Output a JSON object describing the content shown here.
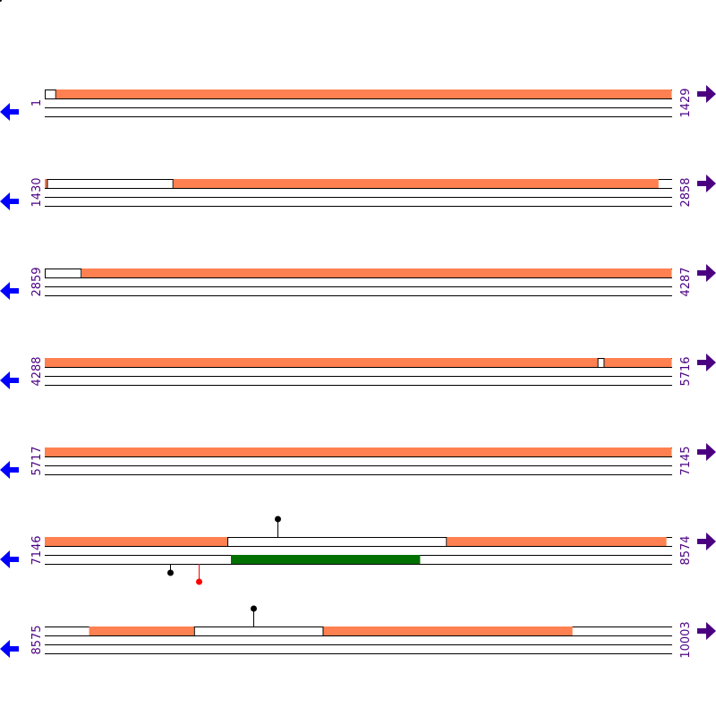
{
  "colors": {
    "line": "#000000",
    "feature_orange": "#ff8050",
    "feature_green": "#007000",
    "marker_black": "#000000",
    "marker_red": "#ff0000",
    "start_arrow": "#0000ff",
    "end_arrow": "#4b0082",
    "label": "#4b0082"
  },
  "icons": {
    "start": "left-arrow-icon",
    "end": "right-arrow-icon"
  },
  "rows": [
    {
      "start": "1",
      "end": "1429",
      "features": [
        {
          "strand": "top",
          "kind": "open",
          "from": 1,
          "to": 27
        },
        {
          "strand": "top",
          "kind": "filled",
          "color": "orange",
          "from": 27,
          "to": 1429
        }
      ],
      "markers": []
    },
    {
      "start": "1430",
      "end": "2858",
      "features": [
        {
          "strand": "top",
          "kind": "filled",
          "color": "orange",
          "from": 1430,
          "to": 1435
        },
        {
          "strand": "top",
          "kind": "open",
          "from": 1435,
          "to": 1723
        },
        {
          "strand": "top",
          "kind": "filled",
          "color": "orange",
          "from": 1723,
          "to": 2828
        }
      ],
      "markers": []
    },
    {
      "start": "2859",
      "end": "4287",
      "features": [
        {
          "strand": "top",
          "kind": "open",
          "from": 2859,
          "to": 2943
        },
        {
          "strand": "top",
          "kind": "filled",
          "color": "orange",
          "from": 2943,
          "to": 4287
        }
      ],
      "markers": []
    },
    {
      "start": "4288",
      "end": "5716",
      "features": [
        {
          "strand": "top",
          "kind": "filled",
          "color": "orange",
          "from": 4288,
          "to": 5547
        },
        {
          "strand": "top",
          "kind": "open",
          "from": 5547,
          "to": 5563
        },
        {
          "strand": "top",
          "kind": "filled",
          "color": "orange",
          "from": 5563,
          "to": 5716
        }
      ],
      "markers": []
    },
    {
      "start": "5717",
      "end": "7145",
      "features": [
        {
          "strand": "top",
          "kind": "filled",
          "color": "orange",
          "from": 5717,
          "to": 7145
        }
      ],
      "markers": []
    },
    {
      "start": "7146",
      "end": "8574",
      "features": [
        {
          "strand": "top",
          "kind": "filled",
          "color": "orange",
          "from": 7146,
          "to": 7562
        },
        {
          "strand": "top",
          "kind": "open",
          "from": 7562,
          "to": 8062
        },
        {
          "strand": "top",
          "kind": "filled",
          "color": "orange",
          "from": 8062,
          "to": 8562
        },
        {
          "strand": "bottom",
          "kind": "filled",
          "color": "green",
          "from": 7570,
          "to": 8001
        }
      ],
      "markers": [
        {
          "pos": 7676,
          "side": "above",
          "color": "black"
        },
        {
          "pos": 7431,
          "side": "below",
          "color": "black"
        },
        {
          "pos": 7496,
          "side": "below",
          "color": "red"
        }
      ]
    },
    {
      "start": "8575",
      "end": "10003",
      "features": [
        {
          "strand": "top",
          "kind": "filled",
          "color": "orange",
          "from": 8676,
          "to": 8915
        },
        {
          "strand": "top",
          "kind": "open",
          "from": 8915,
          "to": 9210
        },
        {
          "strand": "top",
          "kind": "filled",
          "color": "orange",
          "from": 9210,
          "to": 9777
        }
      ],
      "markers": [
        {
          "pos": 9049,
          "side": "above",
          "color": "black"
        }
      ]
    }
  ]
}
